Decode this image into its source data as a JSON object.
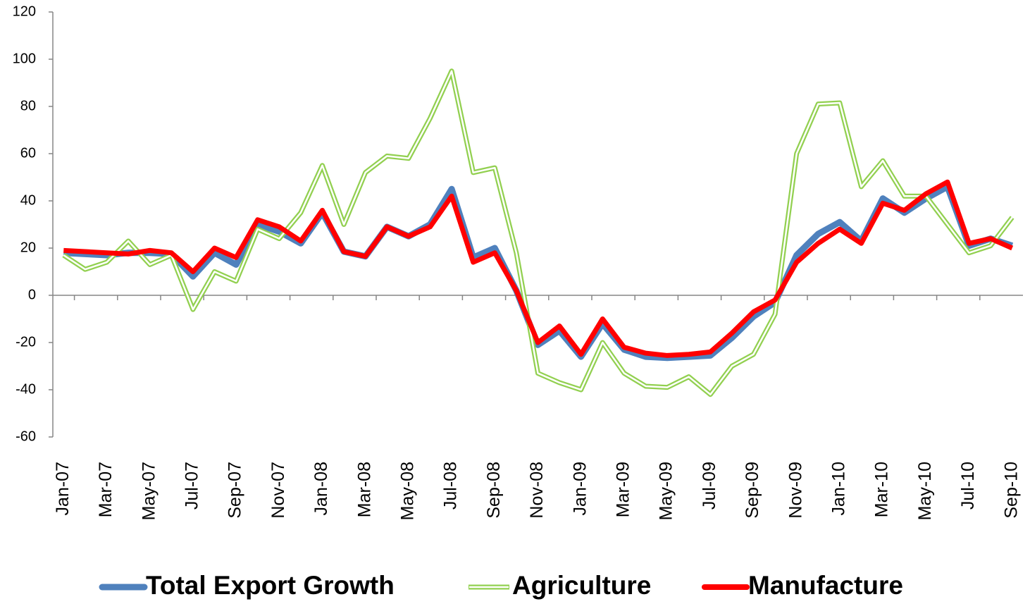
{
  "chart_data": {
    "type": "line",
    "categories": [
      "Jan-07",
      null,
      "Mar-07",
      null,
      "May-07",
      null,
      "Jul-07",
      null,
      "Sep-07",
      null,
      "Nov-07",
      null,
      "Jan-08",
      null,
      "Mar-08",
      null,
      "May-08",
      null,
      "Jul-08",
      null,
      "Sep-08",
      null,
      "Nov-08",
      null,
      "Jan-09",
      null,
      "Mar-09",
      null,
      "May-09",
      null,
      "Jul-09",
      null,
      "Sep-09",
      null,
      "Nov-09",
      null,
      "Jan-10",
      null,
      "Mar-10",
      null,
      "May-10",
      null,
      "Jul-10",
      null,
      "Sep-10"
    ],
    "series": [
      {
        "name": "Total Export Growth",
        "color": "#4f81bd",
        "values": [
          18,
          17.5,
          17,
          18,
          18,
          17.5,
          8,
          18,
          13,
          30,
          27,
          22,
          35,
          18.5,
          16.5,
          29,
          25,
          30,
          45,
          16,
          20,
          2,
          -21,
          -15,
          -26,
          -12,
          -23,
          -26,
          -26.5,
          -26,
          -25.5,
          -18,
          -9,
          -3,
          17,
          26,
          31,
          23,
          41,
          35,
          41,
          46,
          21,
          24,
          21
        ]
      },
      {
        "name": "Agriculture",
        "color": "#92d050",
        "values": [
          17,
          11,
          14,
          23,
          13,
          17,
          -6,
          10,
          6,
          28,
          24,
          35,
          55,
          30,
          52,
          59,
          58,
          75,
          95,
          52,
          54,
          18,
          -33,
          -37,
          -40,
          -20,
          -33,
          -38.5,
          -39,
          -34.5,
          -42,
          -30,
          -25,
          -8,
          60,
          81,
          81.5,
          46,
          57,
          42,
          42,
          30,
          18,
          21,
          33
        ]
      },
      {
        "name": "Manufacture",
        "color": "#ff0000",
        "values": [
          19,
          18.5,
          18,
          17.5,
          19,
          18,
          10,
          20,
          16,
          32,
          29,
          23,
          36,
          18.5,
          16.5,
          29,
          25,
          29,
          42,
          14,
          18,
          2,
          -20,
          -13,
          -25,
          -10,
          -22,
          -24.5,
          -25.5,
          -25,
          -24,
          -16,
          -7,
          -2,
          14,
          22,
          28,
          22,
          39,
          36,
          43,
          48,
          22,
          24,
          20
        ]
      }
    ],
    "ylim": [
      -60,
      120
    ],
    "yticks": [
      -60,
      -40,
      -20,
      0,
      20,
      40,
      60,
      80,
      100,
      120
    ],
    "legend": "bottom"
  }
}
